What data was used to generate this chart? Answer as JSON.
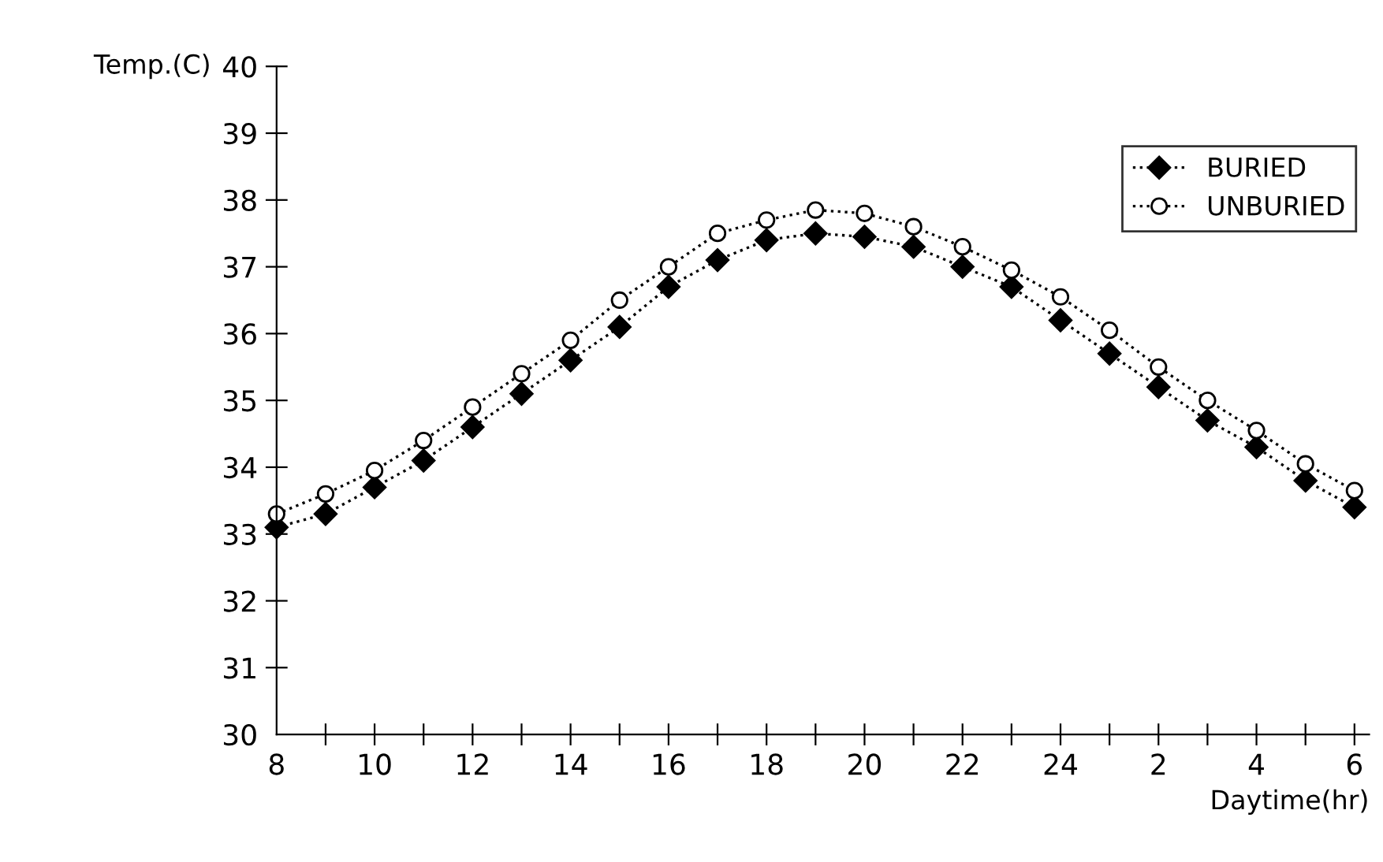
{
  "chart_data": {
    "type": "line",
    "xlabel": "Daytime(hr)",
    "ylabel": "Temp.(C)",
    "categories": [
      "8",
      null,
      "10",
      null,
      "12",
      null,
      "14",
      null,
      "16",
      null,
      "18",
      null,
      "20",
      null,
      "22",
      null,
      "24",
      null,
      "2",
      null,
      "4",
      null,
      "6"
    ],
    "series": [
      {
        "name": "BURIED",
        "color": "#000000",
        "marker": "diamond",
        "values": [
          33.1,
          33.3,
          33.7,
          34.1,
          34.6,
          35.1,
          35.6,
          36.1,
          36.7,
          37.1,
          37.4,
          37.5,
          37.45,
          37.3,
          37.0,
          36.7,
          36.2,
          35.7,
          35.2,
          34.7,
          34.3,
          33.8,
          33.4
        ]
      },
      {
        "name": "UNBURIED",
        "color": "#000000",
        "marker": "circle",
        "values": [
          33.3,
          33.6,
          33.95,
          34.4,
          34.9,
          35.4,
          35.9,
          36.5,
          37.0,
          37.5,
          37.7,
          37.85,
          37.8,
          37.6,
          37.3,
          36.95,
          36.55,
          36.05,
          35.5,
          35.0,
          34.55,
          34.05,
          33.65
        ]
      }
    ],
    "ylim": [
      30,
      40
    ],
    "yticks": [
      30,
      31,
      32,
      33,
      34,
      35,
      36,
      37,
      38,
      39,
      40
    ],
    "grid": false,
    "legend": "top right",
    "line_style": "dotted"
  }
}
